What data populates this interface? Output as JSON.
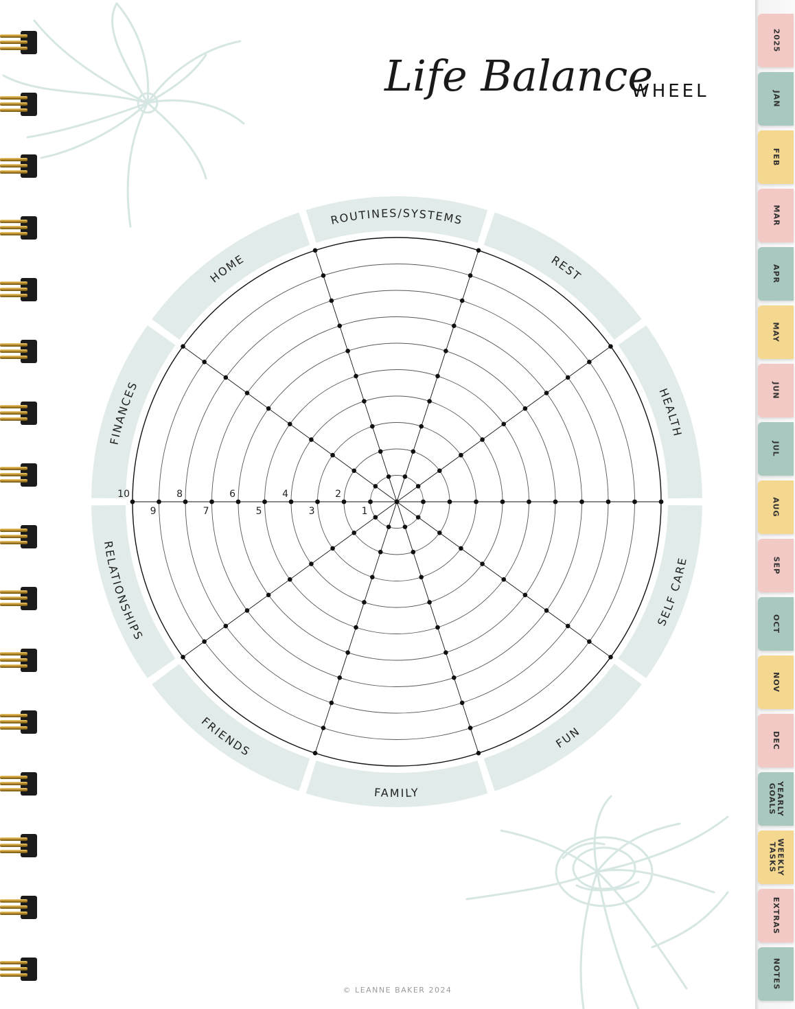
{
  "title": {
    "script": "Life Balance",
    "bold": "WHEEL"
  },
  "categories": [
    "ROUTINES/SYSTEMS",
    "REST",
    "HEALTH",
    "SELF CARE",
    "FUN",
    "FAMILY",
    "FRIENDS",
    "RELATIONSHIPS",
    "FINANCES",
    "HOME"
  ],
  "scale": {
    "min": 1,
    "max": 10,
    "labels": [
      "1",
      "2",
      "3",
      "4",
      "5",
      "6",
      "7",
      "8",
      "9",
      "10"
    ]
  },
  "colors": {
    "band": "#e1ecea",
    "ink": "#111111",
    "ring": "#555555",
    "floral": "#d6e6e3"
  },
  "tabs": [
    {
      "label": "2025",
      "color": "#f2c9c5"
    },
    {
      "label": "JAN",
      "color": "#a9c9c0"
    },
    {
      "label": "FEB",
      "color": "#f5d88f"
    },
    {
      "label": "MAR",
      "color": "#f2c9c5"
    },
    {
      "label": "APR",
      "color": "#a9c9c0"
    },
    {
      "label": "MAY",
      "color": "#f5d88f"
    },
    {
      "label": "JUN",
      "color": "#f2c9c5"
    },
    {
      "label": "JUL",
      "color": "#a9c9c0"
    },
    {
      "label": "AUG",
      "color": "#f5d88f"
    },
    {
      "label": "SEP",
      "color": "#f2c9c5"
    },
    {
      "label": "OCT",
      "color": "#a9c9c0"
    },
    {
      "label": "NOV",
      "color": "#f5d88f"
    },
    {
      "label": "DEC",
      "color": "#f2c9c5"
    },
    {
      "label": "YEARLY\nGOALS",
      "color": "#a9c9c0"
    },
    {
      "label": "WEEKLY\nTASKS",
      "color": "#f5d88f"
    },
    {
      "label": "EXTRAS",
      "color": "#f2c9c5"
    },
    {
      "label": "NOTES",
      "color": "#a9c9c0"
    }
  ],
  "copyright": "© LEANNE BAKER 2024"
}
